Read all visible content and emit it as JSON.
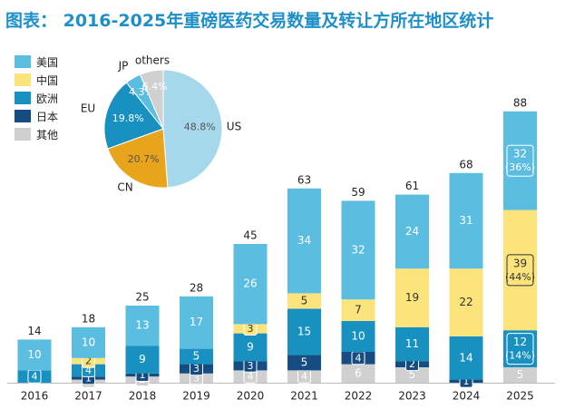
{
  "title": "图表： 2016-2025年重磅医药交易数量及转让方所在地区统计",
  "chart_data": [
    {
      "type": "bar",
      "stacked": true,
      "categories": [
        "2016",
        "2017",
        "2018",
        "2019",
        "2020",
        "2021",
        "2022",
        "2023",
        "2024",
        "2025"
      ],
      "totals": [
        14,
        18,
        25,
        28,
        45,
        63,
        59,
        61,
        68,
        88
      ],
      "series": [
        {
          "name": "其他",
          "color": "#d0d0d0",
          "values": [
            0,
            1,
            2,
            3,
            4,
            4,
            6,
            5,
            0,
            5
          ]
        },
        {
          "name": "日本",
          "color": "#154d83",
          "values": [
            0,
            1,
            1,
            3,
            3,
            5,
            4,
            2,
            1,
            0
          ]
        },
        {
          "name": "欧洲",
          "color": "#1891c0",
          "values": [
            4,
            4,
            9,
            5,
            9,
            15,
            10,
            11,
            14,
            12
          ]
        },
        {
          "name": "中国",
          "color": "#fce47d",
          "values": [
            0,
            2,
            0,
            0,
            3,
            5,
            7,
            19,
            22,
            39
          ]
        },
        {
          "name": "美国",
          "color": "#5bbde0",
          "values": [
            10,
            10,
            13,
            17,
            26,
            34,
            32,
            24,
            31,
            32
          ]
        }
      ],
      "extra_labels": {
        "2025": {
          "美国": "(36%)",
          "中国": "(44%)",
          "欧洲": "(14%)"
        }
      },
      "legend": [
        "美国",
        "中国",
        "欧洲",
        "日本",
        "其他"
      ],
      "legend_position": "top-left"
    },
    {
      "type": "pie",
      "slices": [
        {
          "label": "US",
          "value": 48.8,
          "text": "48.8%",
          "color": "#a6d8ec"
        },
        {
          "label": "CN",
          "value": 20.7,
          "text": "20.7%",
          "color": "#e8a41a"
        },
        {
          "label": "EU",
          "value": 19.8,
          "text": "19.8%",
          "color": "#1891c0"
        },
        {
          "label": "JP",
          "value": 4.3,
          "text": "4.3%",
          "color": "#5bbde0"
        },
        {
          "label": "others",
          "value": 6.4,
          "text": "6.4%",
          "color": "#d0d0d0"
        }
      ]
    }
  ]
}
